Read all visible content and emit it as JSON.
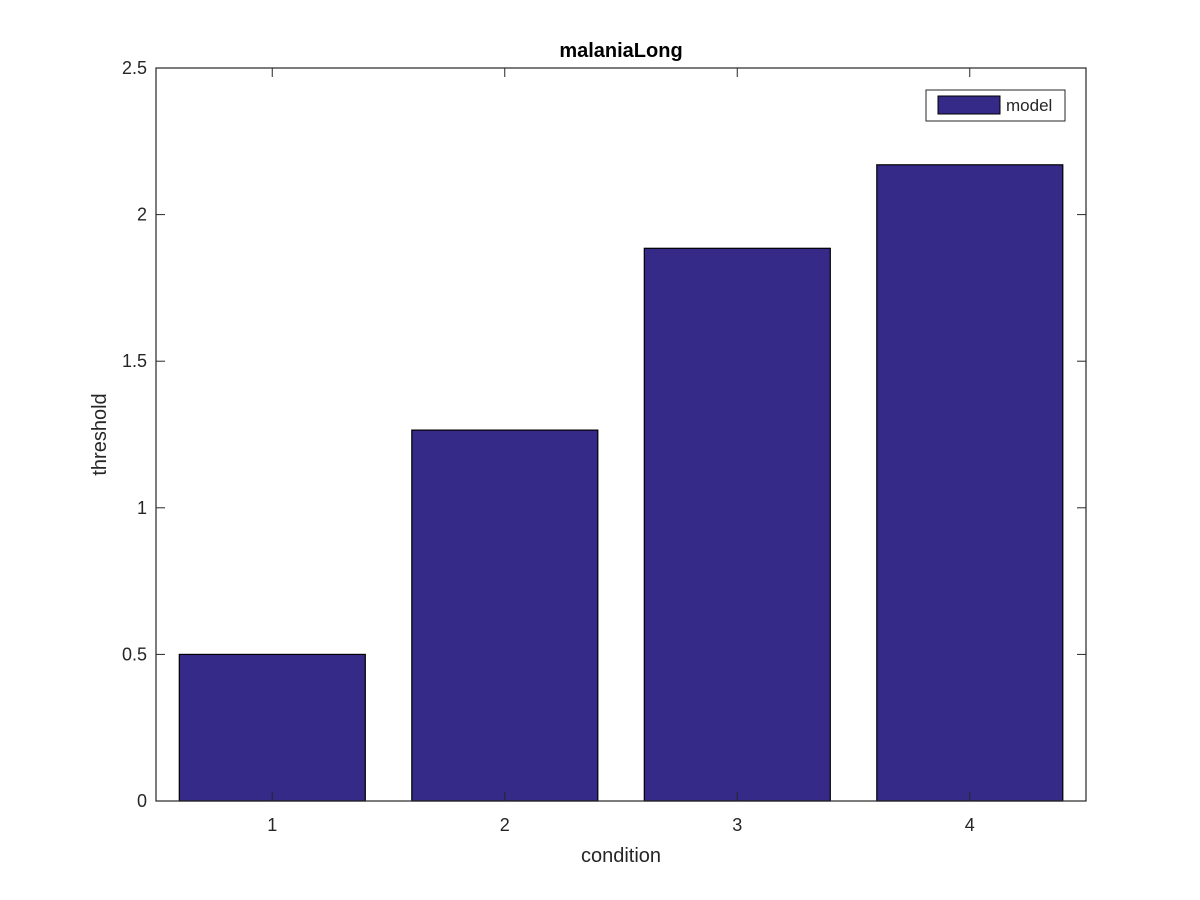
{
  "chart_data": {
    "type": "bar",
    "title": "malaniaLong",
    "xlabel": "condition",
    "ylabel": "threshold",
    "categories": [
      "1",
      "2",
      "3",
      "4"
    ],
    "series": [
      {
        "name": "model",
        "values": [
          0.5,
          1.265,
          1.885,
          2.17
        ]
      }
    ],
    "ylim": [
      0,
      2.5
    ],
    "yticks": [
      0,
      0.5,
      1,
      1.5,
      2,
      2.5
    ],
    "ytick_labels": [
      "0",
      "0.5",
      "1",
      "1.5",
      "2",
      "2.5"
    ],
    "grid": false,
    "legend_position": "top-right",
    "colors": {
      "bar_fill": "#352A87",
      "bar_edge": "#000000",
      "axes": "#262626",
      "background": "#ffffff"
    }
  }
}
